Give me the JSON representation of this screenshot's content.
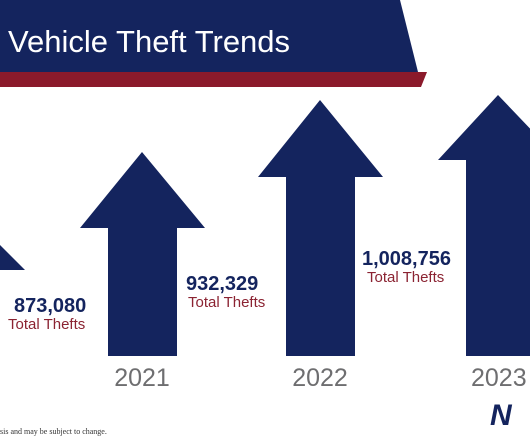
{
  "header": {
    "title": "Vehicle Theft Trends"
  },
  "items": [
    {
      "value": "873,080",
      "caption": "Total Thefts"
    },
    {
      "value": "932,329",
      "caption": "Total Thefts",
      "year": "2021"
    },
    {
      "value": "1,008,756",
      "caption": "Total Thefts",
      "year": "2022"
    },
    {
      "year": "2023"
    }
  ],
  "footer": {
    "note": "sis and may be subject to change.",
    "logo": "N"
  }
}
